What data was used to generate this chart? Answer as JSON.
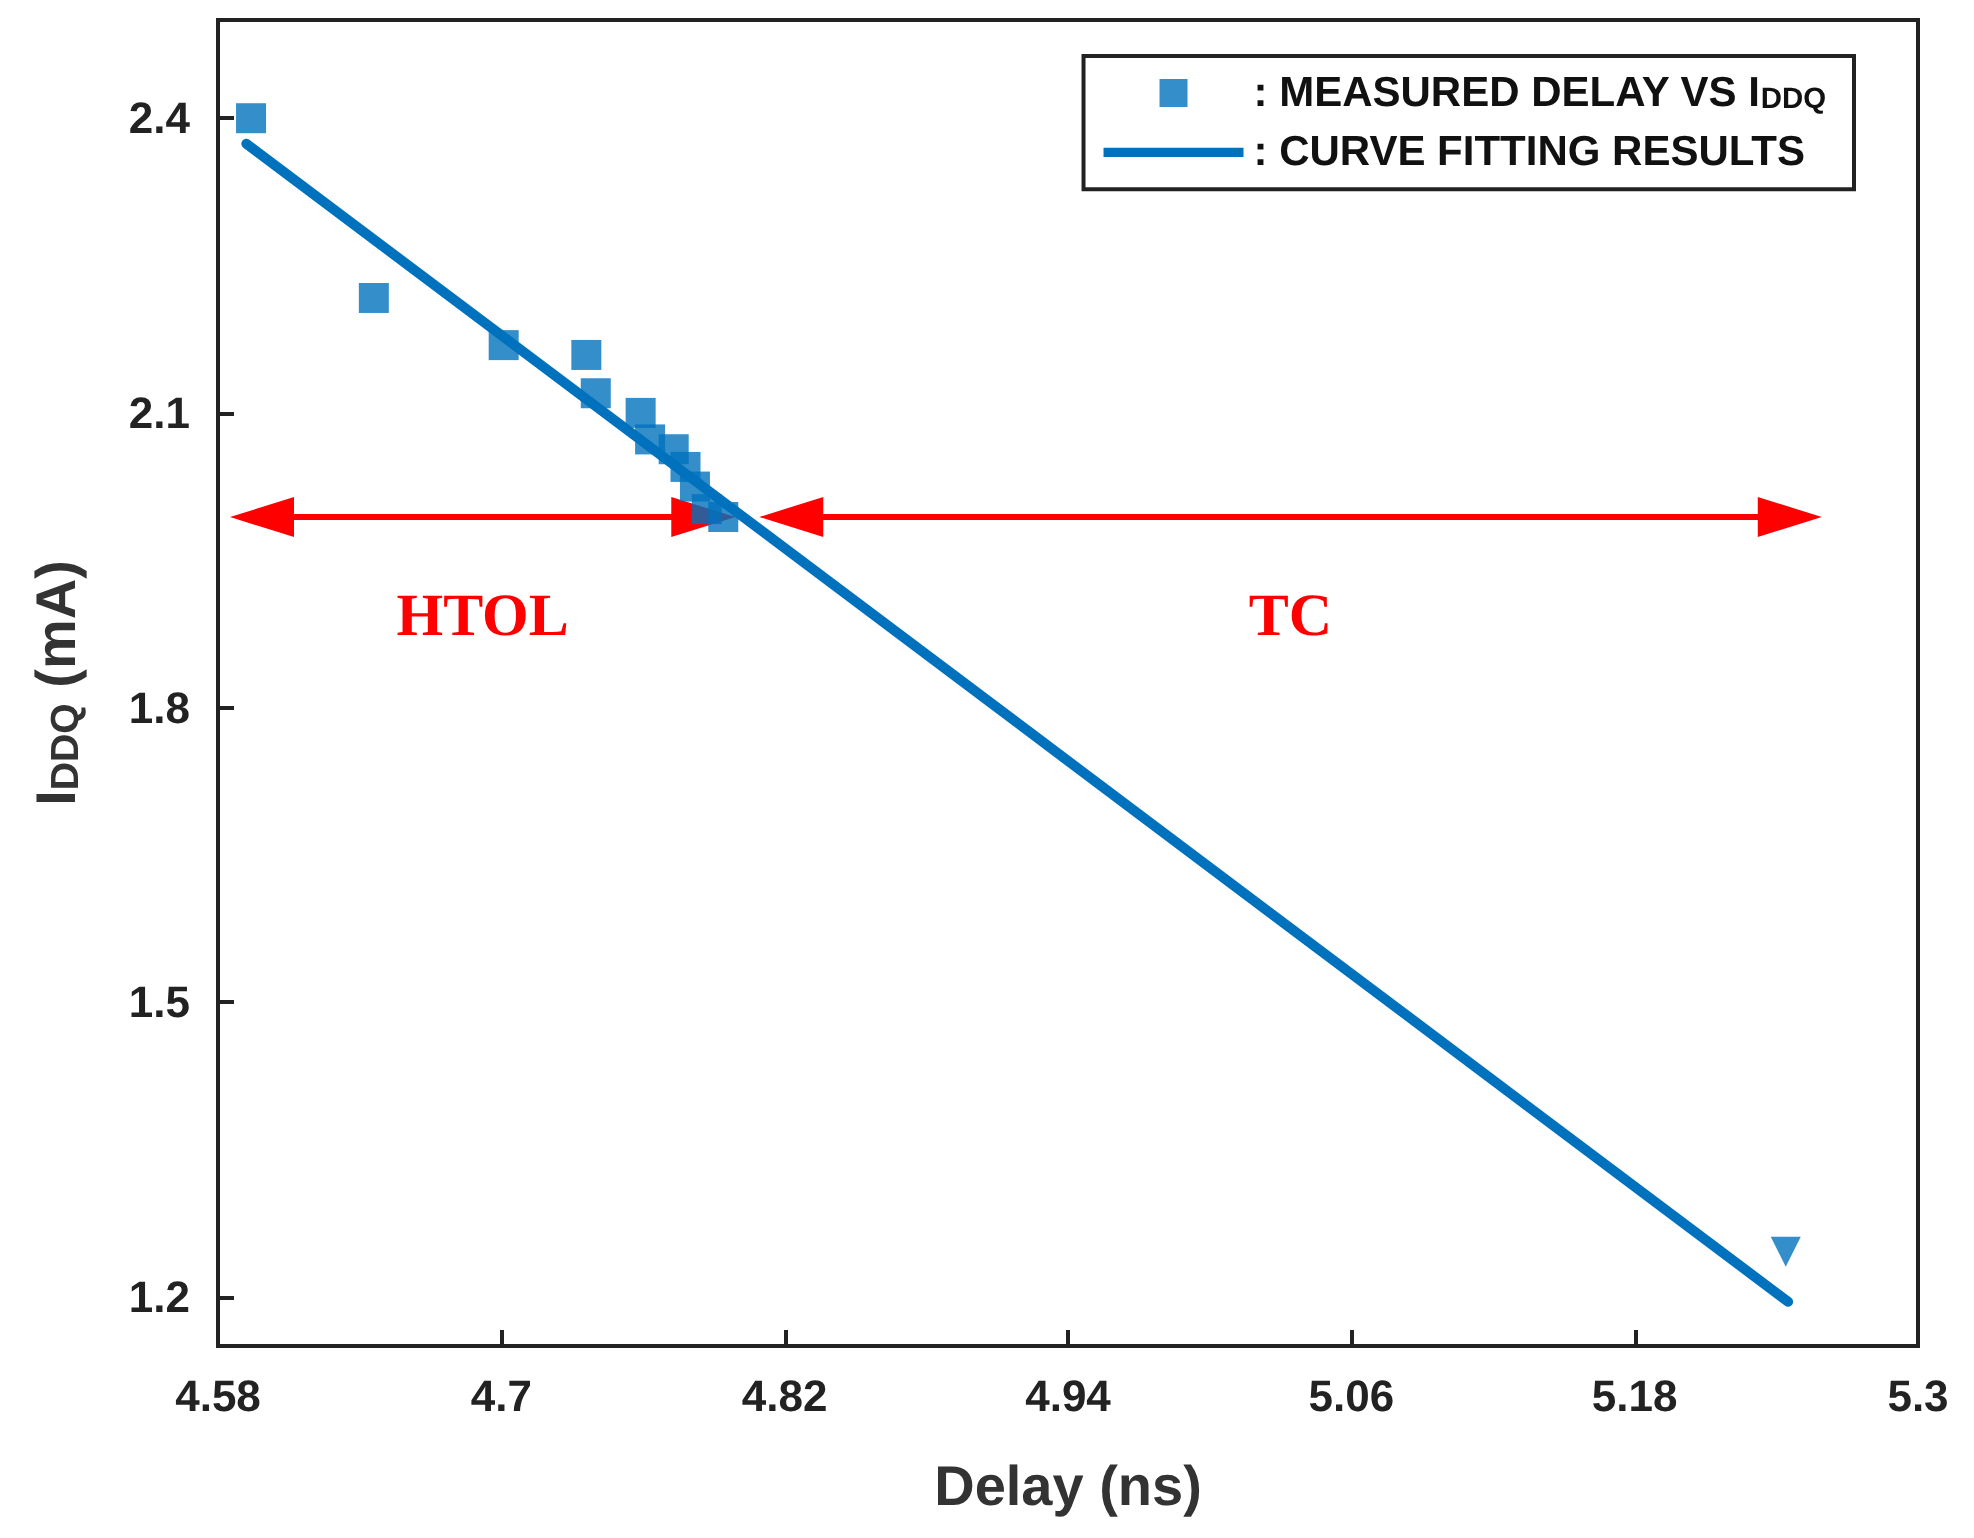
{
  "chart_data": {
    "type": "scatter",
    "xlabel": "Delay (ns)",
    "ylabel": "I$_{DDQ}$ (mA)",
    "xlim": [
      4.58,
      5.3
    ],
    "xticks": [
      4.58,
      4.7,
      4.82,
      4.94,
      5.06,
      5.18,
      5.3
    ],
    "ylim": [
      1.15,
      2.5
    ],
    "yticks": [
      1.2,
      1.5,
      1.8,
      2.1,
      2.4
    ],
    "grid": false,
    "legend": "top right",
    "annotations": [
      "HTOL",
      "TC"
    ],
    "series": [
      {
        "name": ": MEASURED DELAY VS I$_{DDQ}$",
        "marker": "square",
        "color": "#0072bd",
        "x": [
          4.594,
          4.646,
          4.701,
          4.736,
          4.74,
          4.759,
          4.763,
          4.773,
          4.778,
          4.782,
          4.787,
          4.794
        ],
        "values": [
          2.4,
          2.217,
          2.169,
          2.159,
          2.12,
          2.1,
          2.073,
          2.063,
          2.045,
          2.025,
          2.002,
          1.994
        ]
      },
      {
        "name": ": CURVE FITTING RESULTS",
        "type": "line",
        "marker": "none",
        "line_style": "solid",
        "color": "#0072bd",
        "x": [
          4.592,
          5.245
        ],
        "values": [
          2.374,
          1.195
        ]
      },
      {
        "marker": "triangle",
        "color": "#0072bd",
        "x": [
          5.244
        ],
        "values": [
          1.246
        ]
      }
    ]
  }
}
